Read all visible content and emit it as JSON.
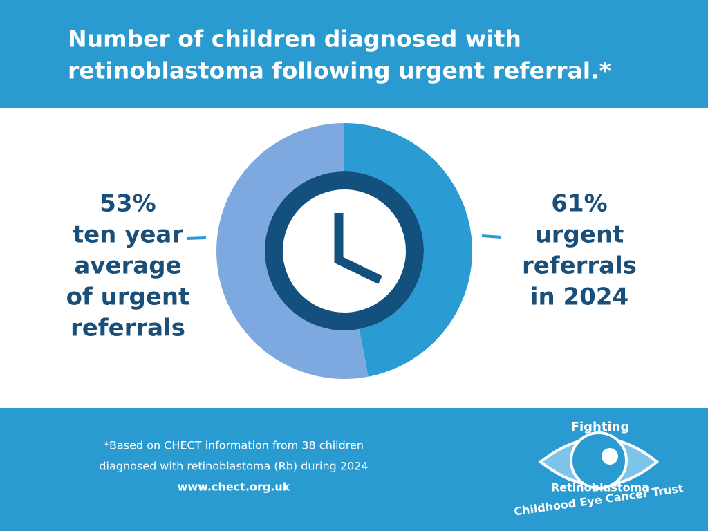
{
  "chart_data": {
    "type": "donut",
    "title": [
      "Number of children diagnosed with",
      "retinoblastoma following urgent referral.*"
    ],
    "values": [
      47,
      53
    ],
    "colors": [
      "#2b9bd3",
      "#7ea8e0"
    ],
    "annotations": [
      {
        "lines": [
          "53%",
          "ten year",
          "average",
          "of urgent",
          "referrals"
        ]
      },
      {
        "lines": [
          "61%",
          "urgent",
          "referrals",
          "in 2024"
        ]
      }
    ]
  },
  "footer": {
    "note": [
      "*Based on CHECT information from 38 children",
      "diagnosed with retinoblastoma (Rb) during 2024"
    ],
    "url": "www.chect.org.uk"
  },
  "logo": {
    "top": "Fighting",
    "middle": "Retinoblastoma",
    "bottom": "Childhood Eye Cancer Trust"
  }
}
